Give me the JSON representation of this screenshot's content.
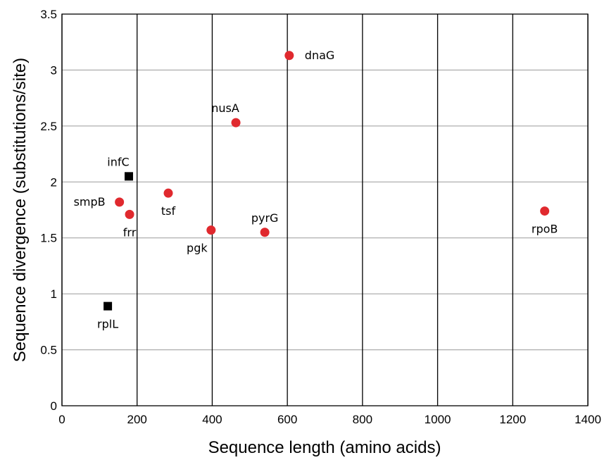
{
  "chart_data": {
    "type": "scatter",
    "title": "",
    "xlabel": "Sequence length (amino acids)",
    "ylabel": "Sequence divergence (substitutions/site)",
    "xlim": [
      0,
      1400
    ],
    "ylim": [
      0,
      3.5
    ],
    "xticks": [
      0,
      200,
      400,
      600,
      800,
      1000,
      1200,
      1400
    ],
    "yticks": [
      0,
      0.5,
      1,
      1.5,
      2,
      2.5,
      3,
      3.5
    ],
    "xtick_labels": [
      "0",
      "200",
      "400",
      "600",
      "800",
      "1000",
      "1200",
      "1400"
    ],
    "ytick_labels": [
      "0",
      "0.5",
      "1",
      "1.5",
      "2",
      "2.5",
      "3",
      "3.5"
    ],
    "grid": true,
    "marker_colors": {
      "circle": "#e0292e",
      "square": "#000000"
    },
    "points": [
      {
        "label": "dnaG",
        "x": 605,
        "y": 3.13,
        "marker": "circle",
        "label_pos": "right"
      },
      {
        "label": "nusA",
        "x": 463,
        "y": 2.53,
        "marker": "circle",
        "label_pos": "above-left"
      },
      {
        "label": "infC",
        "x": 178,
        "y": 2.05,
        "marker": "square",
        "label_pos": "above-left"
      },
      {
        "label": "tsf",
        "x": 283,
        "y": 1.9,
        "marker": "circle",
        "label_pos": "below"
      },
      {
        "label": "smpB",
        "x": 153,
        "y": 1.82,
        "marker": "circle",
        "label_pos": "left"
      },
      {
        "label": "frr",
        "x": 180,
        "y": 1.71,
        "marker": "circle",
        "label_pos": "below"
      },
      {
        "label": "pgk",
        "x": 397,
        "y": 1.57,
        "marker": "circle",
        "label_pos": "below-left"
      },
      {
        "label": "pyrG",
        "x": 540,
        "y": 1.55,
        "marker": "circle",
        "label_pos": "above"
      },
      {
        "label": "rpoB",
        "x": 1285,
        "y": 1.74,
        "marker": "circle",
        "label_pos": "below"
      },
      {
        "label": "rplL",
        "x": 122,
        "y": 0.89,
        "marker": "square",
        "label_pos": "below"
      }
    ]
  }
}
